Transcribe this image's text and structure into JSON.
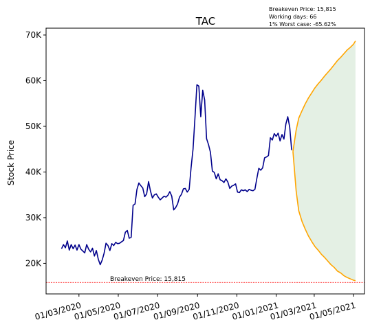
{
  "chart_data": {
    "type": "line",
    "title": "TAC",
    "ylabel": "Stock Price",
    "xlabel": "",
    "ylim": [
      13300,
      71500
    ],
    "xlim": [
      "2020-01-10",
      "2021-05-18"
    ],
    "grid": false,
    "x_ticks": [
      {
        "date": "2020-03-01",
        "label": "01/03/2020"
      },
      {
        "date": "2020-05-01",
        "label": "01/05/2020"
      },
      {
        "date": "2020-07-01",
        "label": "01/07/2020"
      },
      {
        "date": "2020-09-01",
        "label": "01/09/2020"
      },
      {
        "date": "2020-11-01",
        "label": "01/11/2020"
      },
      {
        "date": "2021-01-01",
        "label": "01/01/2021"
      },
      {
        "date": "2021-03-01",
        "label": "01/03/2021"
      },
      {
        "date": "2021-05-01",
        "label": "01/05/2021"
      }
    ],
    "y_ticks": [
      {
        "value": 20000,
        "label": "20K"
      },
      {
        "value": 30000,
        "label": "30K"
      },
      {
        "value": 40000,
        "label": "40K"
      },
      {
        "value": 50000,
        "label": "50K"
      },
      {
        "value": 60000,
        "label": "60K"
      },
      {
        "value": 70000,
        "label": "70K"
      }
    ],
    "colors": {
      "history": "#00008b",
      "forecast": "#ffa500",
      "band": "#2e8b2e",
      "breakeven": "#ff0000"
    },
    "series": [
      {
        "id": "history",
        "x": [
          "2020-02-03",
          "2020-02-06",
          "2020-02-09",
          "2020-02-12",
          "2020-02-15",
          "2020-02-18",
          "2020-02-21",
          "2020-02-24",
          "2020-02-27",
          "2020-03-01",
          "2020-03-04",
          "2020-03-07",
          "2020-03-10",
          "2020-03-13",
          "2020-03-16",
          "2020-03-19",
          "2020-03-22",
          "2020-03-25",
          "2020-03-28",
          "2020-03-31",
          "2020-04-03",
          "2020-04-06",
          "2020-04-09",
          "2020-04-12",
          "2020-04-15",
          "2020-04-18",
          "2020-04-21",
          "2020-04-24",
          "2020-04-27",
          "2020-04-30",
          "2020-05-03",
          "2020-05-06",
          "2020-05-09",
          "2020-05-12",
          "2020-05-15",
          "2020-05-18",
          "2020-05-21",
          "2020-05-24",
          "2020-05-27",
          "2020-05-30",
          "2020-06-02",
          "2020-06-05",
          "2020-06-08",
          "2020-06-11",
          "2020-06-14",
          "2020-06-17",
          "2020-06-20",
          "2020-06-23",
          "2020-06-26",
          "2020-06-29",
          "2020-07-02",
          "2020-07-05",
          "2020-07-08",
          "2020-07-11",
          "2020-07-14",
          "2020-07-17",
          "2020-07-20",
          "2020-07-23",
          "2020-07-26",
          "2020-07-29",
          "2020-08-01",
          "2020-08-04",
          "2020-08-07",
          "2020-08-10",
          "2020-08-13",
          "2020-08-16",
          "2020-08-19",
          "2020-08-22",
          "2020-08-25",
          "2020-08-28",
          "2020-08-31",
          "2020-09-03",
          "2020-09-06",
          "2020-09-09",
          "2020-09-12",
          "2020-09-15",
          "2020-09-18",
          "2020-09-21",
          "2020-09-24",
          "2020-09-27",
          "2020-09-30",
          "2020-10-03",
          "2020-10-06",
          "2020-10-09",
          "2020-10-12",
          "2020-10-15",
          "2020-10-18",
          "2020-10-21",
          "2020-10-24",
          "2020-10-27",
          "2020-10-30",
          "2020-11-02",
          "2020-11-05",
          "2020-11-08",
          "2020-11-11",
          "2020-11-14",
          "2020-11-17",
          "2020-11-20",
          "2020-11-23",
          "2020-11-26",
          "2020-11-29",
          "2020-12-02",
          "2020-12-05",
          "2020-12-08",
          "2020-12-11",
          "2020-12-14",
          "2020-12-17",
          "2020-12-20",
          "2020-12-23",
          "2020-12-26",
          "2020-12-29",
          "2021-01-01",
          "2021-01-04",
          "2021-01-07",
          "2021-01-10",
          "2021-01-13",
          "2021-01-16",
          "2021-01-19",
          "2021-01-22",
          "2021-01-25"
        ],
        "values": [
          23200,
          24100,
          23400,
          24900,
          22900,
          24100,
          23200,
          24000,
          22900,
          24100,
          23100,
          22700,
          22300,
          24100,
          23100,
          22500,
          23300,
          21600,
          22800,
          20900,
          19700,
          20700,
          22200,
          24400,
          23900,
          22800,
          24300,
          23900,
          24600,
          24300,
          24400,
          24700,
          25000,
          26800,
          27200,
          25500,
          25700,
          32700,
          33000,
          36200,
          37600,
          37000,
          36500,
          34600,
          35200,
          37900,
          35800,
          34300,
          35000,
          35200,
          34500,
          33900,
          34300,
          34700,
          34500,
          34900,
          35700,
          34700,
          31700,
          32200,
          33000,
          34500,
          35100,
          36300,
          36400,
          35600,
          36200,
          41000,
          45000,
          51900,
          59100,
          58800,
          52100,
          57900,
          55800,
          47300,
          46000,
          44300,
          40200,
          39900,
          38500,
          39600,
          38300,
          38100,
          37700,
          38500,
          37800,
          36400,
          36900,
          37100,
          37400,
          35600,
          35500,
          36100,
          35900,
          36100,
          35700,
          36200,
          36000,
          35900,
          36200,
          38600,
          40800,
          40400,
          40900,
          43100,
          43300,
          43600,
          47500,
          47000,
          48400,
          47800,
          48500,
          46800,
          48200,
          47200,
          50500,
          52100,
          49800,
          44800
        ]
      },
      {
        "id": "forecast_upper",
        "x": [
          "2021-01-27",
          "2021-02-01",
          "2021-02-05",
          "2021-02-10",
          "2021-02-15",
          "2021-02-20",
          "2021-02-25",
          "2021-03-02",
          "2021-03-07",
          "2021-03-12",
          "2021-03-17",
          "2021-03-22",
          "2021-03-27",
          "2021-04-01",
          "2021-04-06",
          "2021-04-11",
          "2021-04-16",
          "2021-04-21",
          "2021-04-26",
          "2021-05-01",
          "2021-05-04"
        ],
        "values": [
          44500,
          49200,
          51800,
          53400,
          54900,
          56200,
          57300,
          58400,
          59300,
          60100,
          61000,
          61800,
          62600,
          63500,
          64400,
          65100,
          65900,
          66700,
          67300,
          68000,
          68700
        ]
      },
      {
        "id": "forecast_lower",
        "x": [
          "2021-01-27",
          "2021-02-01",
          "2021-02-05",
          "2021-02-10",
          "2021-02-15",
          "2021-02-20",
          "2021-02-25",
          "2021-03-02",
          "2021-03-07",
          "2021-03-12",
          "2021-03-17",
          "2021-03-22",
          "2021-03-27",
          "2021-04-01",
          "2021-04-06",
          "2021-04-11",
          "2021-04-16",
          "2021-04-21",
          "2021-04-26",
          "2021-05-01",
          "2021-05-04"
        ],
        "values": [
          44500,
          35800,
          31500,
          29200,
          27500,
          26000,
          24800,
          23700,
          22900,
          22000,
          21300,
          20500,
          19700,
          19100,
          18300,
          17900,
          17300,
          16900,
          16600,
          16300,
          16200
        ]
      }
    ],
    "breakeven": {
      "value": 15815,
      "label": "Breakeven Price: 15,815"
    },
    "info": [
      "Breakeven Price: 15,815",
      "Working days: 66",
      "1% Worst case: -65.62%"
    ]
  }
}
